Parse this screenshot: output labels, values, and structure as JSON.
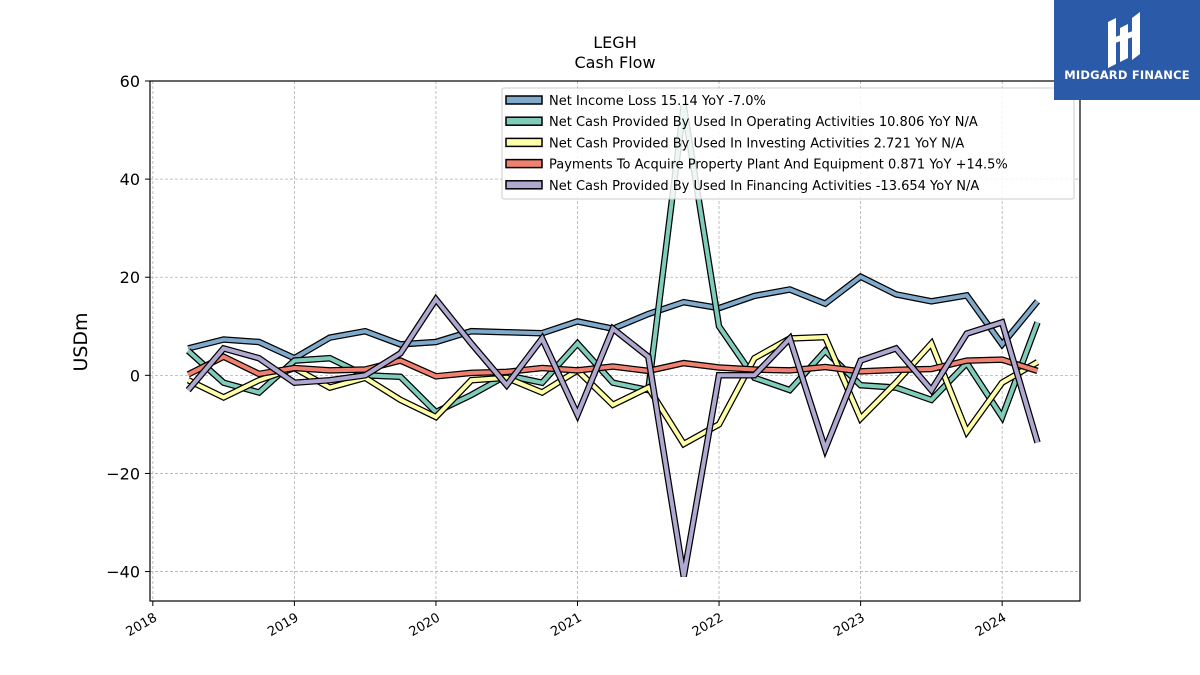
{
  "chart_data": {
    "type": "line",
    "title": "LEGH",
    "subtitle": "Cash Flow",
    "xlabel": "",
    "ylabel": "USDm",
    "ylim": [
      -46,
      60
    ],
    "xlim": [
      2017.98,
      2024.55
    ],
    "yticks": [
      -40,
      -20,
      0,
      20,
      40,
      60
    ],
    "yticks_labels": [
      "−40",
      "−20",
      "0",
      "20",
      "40",
      "60"
    ],
    "xticks": [
      2018,
      2019,
      2020,
      2021,
      2022,
      2023,
      2024
    ],
    "xticks_labels": [
      "2018",
      "2019",
      "2020",
      "2021",
      "2022",
      "2023",
      "2024"
    ],
    "grid": true,
    "legend_position": "top-right",
    "x": [
      2018.25,
      2018.5,
      2018.75,
      2019.0,
      2019.25,
      2019.5,
      2019.75,
      2020.0,
      2020.25,
      2020.5,
      2020.75,
      2021.0,
      2021.25,
      2021.5,
      2021.75,
      2022.0,
      2022.25,
      2022.5,
      2022.75,
      2023.0,
      2023.25,
      2023.5,
      2023.75,
      2024.0,
      2024.25
    ],
    "series": [
      {
        "name": "Net Income Loss",
        "legend_label": "Net Income Loss  15.14 YoY -7.0%",
        "color": "#80aacc",
        "values": [
          5.5,
          7.3,
          6.8,
          3.5,
          7.7,
          9.0,
          6.3,
          6.8,
          9.0,
          8.8,
          8.6,
          11.0,
          9.5,
          12.5,
          14.9,
          13.7,
          16.2,
          17.5,
          14.6,
          20.1,
          16.5,
          15.1,
          16.3,
          6.3,
          15.1
        ]
      },
      {
        "name": "Net Cash Provided By Used In Operating Activities",
        "legend_label": "Net Cash Provided By Used In Operating Activities  10.806 YoY N/A",
        "color": "#80ccbb",
        "values": [
          5.0,
          -1.5,
          -3.5,
          3.0,
          3.5,
          0.0,
          -0.3,
          -7.5,
          -4.0,
          0.0,
          -1.5,
          6.5,
          -1.5,
          -3.0,
          55.0,
          10.0,
          -0.5,
          -3.0,
          5.0,
          -2.0,
          -2.5,
          -5.0,
          2.5,
          -8.5,
          10.8
        ]
      },
      {
        "name": "Net Cash Provided By Used In Investing Activities",
        "legend_label": "Net Cash Provided By Used In Investing Activities  2.721 YoY N/A",
        "color": "#ffffaa",
        "values": [
          -1.0,
          -4.5,
          -1.0,
          1.5,
          -2.5,
          -0.5,
          -5.0,
          -8.5,
          -1.0,
          -0.5,
          -3.5,
          1.0,
          -6.0,
          -2.5,
          -14.0,
          -10.0,
          3.5,
          7.5,
          7.8,
          -8.8,
          -1.5,
          6.5,
          -11.5,
          -1.5,
          2.7
        ]
      },
      {
        "name": "Payments To Acquire Property Plant And Equipment",
        "legend_label": "Payments To Acquire Property Plant And Equipment  0.871 YoY +14.5%",
        "color": "#f08070",
        "values": [
          0.2,
          3.8,
          0.3,
          1.5,
          1.0,
          1.2,
          3.0,
          -0.2,
          0.5,
          0.7,
          1.5,
          1.0,
          1.8,
          0.9,
          2.5,
          1.6,
          1.2,
          1.0,
          1.7,
          0.8,
          1.1,
          1.3,
          3.0,
          3.2,
          0.9
        ]
      },
      {
        "name": "Net Cash Provided By Used In Financing Activities",
        "legend_label": "Net Cash Provided By Used In Financing Activities  -13.654 YoY N/A",
        "color": "#b0a8d0",
        "values": [
          -3.0,
          5.5,
          3.5,
          -1.5,
          -1.0,
          0.0,
          4.5,
          15.5,
          6.5,
          -2.0,
          7.5,
          -8.0,
          9.5,
          3.8,
          -41.0,
          0.0,
          0.0,
          7.5,
          -15.0,
          3.0,
          5.5,
          -3.0,
          8.5,
          10.8,
          -13.7
        ]
      }
    ]
  },
  "logo": {
    "text": "MIDGARD FINANCE",
    "icon": "midgard-logo-icon",
    "background": "#2a5aa8"
  }
}
